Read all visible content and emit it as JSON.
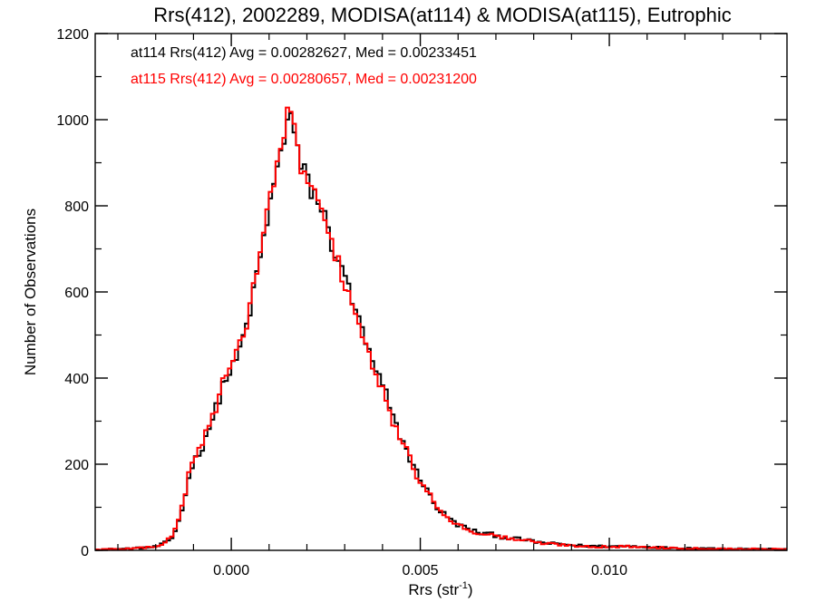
{
  "chart_data": {
    "type": "histogram-step",
    "title": "Rrs(412), 2002289, MODISA(at114) & MODISA(at115), Eutrophic",
    "xlabel": "Rrs (str",
    "xlabel_sup": "-1",
    "xlabel_close": ")",
    "ylabel": "Number of Observations",
    "xlim": [
      -0.0036,
      0.0147
    ],
    "ylim": [
      0,
      1200
    ],
    "x_ticks": [
      0.0,
      0.005,
      0.01
    ],
    "x_tick_labels": [
      "0.000",
      "0.005",
      "0.010"
    ],
    "y_ticks": [
      0,
      200,
      400,
      600,
      800,
      1000,
      1200
    ],
    "y_tick_labels": [
      "0",
      "200",
      "400",
      "600",
      "800",
      "1000",
      "1200"
    ],
    "bin_width": 9e-05,
    "annotations": [
      {
        "text": "at114 Rrs(412) Avg = 0.00282627, Med = 0.00233451",
        "color": "#000000"
      },
      {
        "text": "at115 Rrs(412) Avg = 0.00280657, Med = 0.00231200",
        "color": "#ff0000"
      }
    ],
    "series": [
      {
        "color": "#000000",
        "x": [
          -0.0036,
          -0.003,
          -0.0025,
          -0.002,
          -0.0018,
          -0.0016,
          -0.0015,
          -0.0014,
          -0.0013,
          -0.0012,
          -0.0011,
          -0.001,
          -0.0009,
          -0.0008,
          -0.0007,
          -0.0006,
          -0.0005,
          -0.0004,
          -0.0003,
          -0.0002,
          -0.0001,
          0.0,
          0.0001,
          0.0002,
          0.0003,
          0.0004,
          0.0005,
          0.0006,
          0.0007,
          0.0008,
          0.0009,
          0.001,
          0.0011,
          0.0012,
          0.0013,
          0.0014,
          0.0015,
          0.0016,
          0.0017,
          0.0018,
          0.0019,
          0.002,
          0.0021,
          0.0022,
          0.0023,
          0.0024,
          0.0025,
          0.0026,
          0.0027,
          0.0028,
          0.0029,
          0.003,
          0.0031,
          0.0032,
          0.0033,
          0.0034,
          0.0035,
          0.0036,
          0.0037,
          0.0038,
          0.0039,
          0.004,
          0.0041,
          0.0042,
          0.0043,
          0.0044,
          0.0045,
          0.0046,
          0.0047,
          0.0048,
          0.0049,
          0.005,
          0.0051,
          0.0052,
          0.0053,
          0.0054,
          0.0055,
          0.0056,
          0.0057,
          0.0058,
          0.0059,
          0.006,
          0.0062,
          0.0064,
          0.0066,
          0.0068,
          0.007,
          0.0072,
          0.0074,
          0.0076,
          0.0078,
          0.008,
          0.0082,
          0.0084,
          0.0086,
          0.0088,
          0.009,
          0.0095,
          0.01,
          0.0105,
          0.011,
          0.0115,
          0.012,
          0.0125,
          0.013,
          0.0135,
          0.014,
          0.0147
        ],
        "values": [
          2,
          3,
          5,
          8,
          15,
          25,
          40,
          70,
          95,
          130,
          190,
          205,
          215,
          235,
          260,
          285,
          300,
          330,
          360,
          390,
          405,
          420,
          430,
          460,
          490,
          520,
          560,
          600,
          650,
          700,
          740,
          790,
          840,
          870,
          930,
          960,
          1010,
          1005,
          950,
          900,
          880,
          870,
          835,
          830,
          810,
          790,
          770,
          720,
          700,
          690,
          650,
          630,
          620,
          580,
          560,
          520,
          500,
          470,
          440,
          420,
          400,
          380,
          360,
          330,
          300,
          280,
          260,
          240,
          220,
          200,
          180,
          170,
          150,
          135,
          120,
          105,
          95,
          85,
          80,
          70,
          65,
          60,
          52,
          45,
          40,
          38,
          35,
          30,
          28,
          26,
          24,
          20,
          18,
          16,
          15,
          14,
          12,
          10,
          9,
          10,
          8,
          6,
          5,
          5,
          4,
          4,
          3,
          2
        ]
      },
      {
        "color": "#ff0000",
        "x": [
          -0.0036,
          -0.003,
          -0.0025,
          -0.002,
          -0.0018,
          -0.0016,
          -0.0015,
          -0.0014,
          -0.0013,
          -0.0012,
          -0.0011,
          -0.001,
          -0.0009,
          -0.0008,
          -0.0007,
          -0.0006,
          -0.0005,
          -0.0004,
          -0.0003,
          -0.0002,
          -0.0001,
          0.0,
          0.0001,
          0.0002,
          0.0003,
          0.0004,
          0.0005,
          0.0006,
          0.0007,
          0.0008,
          0.0009,
          0.001,
          0.0011,
          0.0012,
          0.0013,
          0.0014,
          0.0015,
          0.0016,
          0.0017,
          0.0018,
          0.0019,
          0.002,
          0.0021,
          0.0022,
          0.0023,
          0.0024,
          0.0025,
          0.0026,
          0.0027,
          0.0028,
          0.0029,
          0.003,
          0.0031,
          0.0032,
          0.0033,
          0.0034,
          0.0035,
          0.0036,
          0.0037,
          0.0038,
          0.0039,
          0.004,
          0.0041,
          0.0042,
          0.0043,
          0.0044,
          0.0045,
          0.0046,
          0.0047,
          0.0048,
          0.0049,
          0.005,
          0.0051,
          0.0052,
          0.0053,
          0.0054,
          0.0055,
          0.0056,
          0.0057,
          0.0058,
          0.0059,
          0.006,
          0.0062,
          0.0064,
          0.0066,
          0.0068,
          0.007,
          0.0072,
          0.0074,
          0.0076,
          0.0078,
          0.008,
          0.0082,
          0.0084,
          0.0086,
          0.0088,
          0.009,
          0.0095,
          0.01,
          0.0105,
          0.011,
          0.0115,
          0.012,
          0.0125,
          0.013,
          0.0135,
          0.014,
          0.0147
        ],
        "values": [
          2,
          3,
          5,
          9,
          16,
          28,
          45,
          75,
          100,
          140,
          200,
          210,
          225,
          240,
          270,
          290,
          310,
          335,
          370,
          395,
          410,
          425,
          440,
          470,
          500,
          530,
          570,
          620,
          665,
          710,
          760,
          805,
          850,
          880,
          940,
          970,
          1015,
          1000,
          955,
          905,
          885,
          860,
          845,
          830,
          800,
          780,
          760,
          720,
          700,
          680,
          640,
          620,
          610,
          570,
          550,
          515,
          490,
          460,
          430,
          410,
          390,
          370,
          340,
          320,
          295,
          275,
          255,
          235,
          215,
          195,
          175,
          165,
          145,
          130,
          120,
          110,
          100,
          90,
          80,
          72,
          65,
          58,
          50,
          44,
          40,
          37,
          33,
          30,
          27,
          25,
          23,
          19,
          17,
          15,
          14,
          13,
          11,
          9,
          8,
          9,
          7,
          6,
          5,
          4,
          4,
          3,
          3,
          2
        ]
      }
    ]
  }
}
